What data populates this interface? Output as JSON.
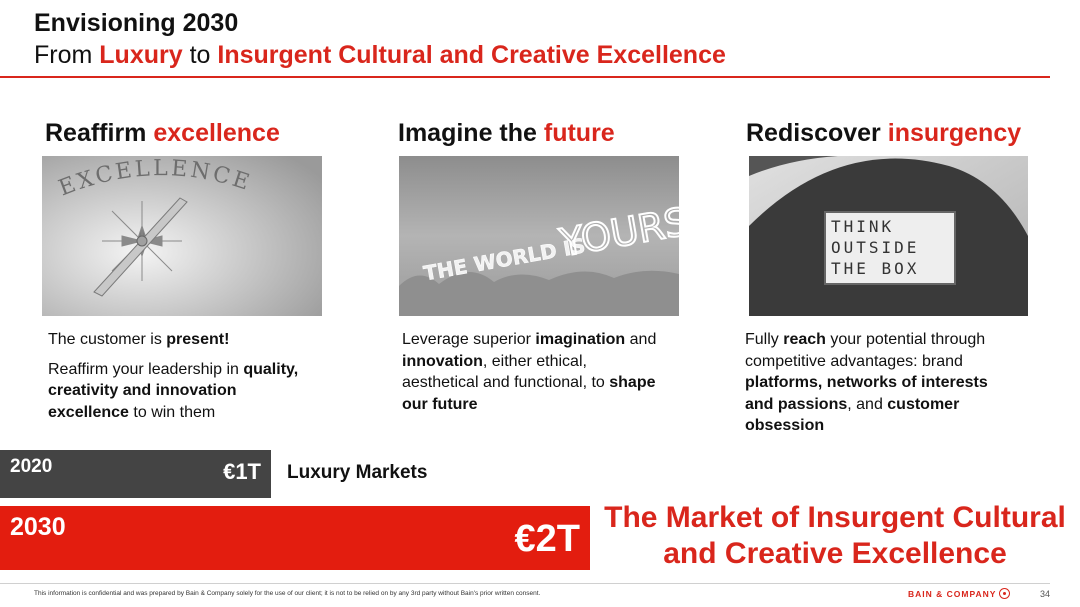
{
  "header": {
    "title": "Envisioning 2030",
    "subtitle_from": "From ",
    "subtitle_luxury": "Luxury",
    "subtitle_to": " to ",
    "subtitle_target": "Insurgent Cultural and Creative Excellence"
  },
  "columns": [
    {
      "heading_plain": "Reaffirm ",
      "heading_accent": "excellence",
      "image_text": "EXCELLENCE",
      "p1_a": "The customer is ",
      "p1_b": "present!",
      "p2_a": "Reaffirm your leadership in ",
      "p2_b": "quality, creativity and innovation excellence",
      "p2_c": " to win them"
    },
    {
      "heading_plain": "Imagine the ",
      "heading_accent": "future",
      "image_text_a": "THE WORLD IS ",
      "image_text_b": "YOURS",
      "t_a": "Leverage superior ",
      "t_b": "imagination",
      "t_c": " and ",
      "t_d": "innovation",
      "t_e": ", either ethical, aesthetical and functional, to ",
      "t_f": "shape our future"
    },
    {
      "heading_plain": "Rediscover ",
      "heading_accent": "insurgency",
      "image_line1": "THINK",
      "image_line2": "OUTSIDE",
      "image_line3": "THE BOX",
      "t_a": "Fully ",
      "t_b": "reach",
      "t_c": " your potential through competitive advantages: brand ",
      "t_d": "platforms, networks of interests and passions",
      "t_e": ", and ",
      "t_f": "customer obsession"
    }
  ],
  "bars": {
    "year_2020": "2020",
    "value_2020": "€1T",
    "label_2020": "Luxury Markets",
    "year_2030": "2030",
    "value_2030": "€2T",
    "label_2030_line1": "The Market of Insurgent Cultural",
    "label_2030_line2": "and Creative Excellence"
  },
  "footer": {
    "disclaimer": "This information is confidential and was prepared by Bain & Company solely for the use of our client; it is not to be relied on by any 3rd party without Bain's prior written consent.",
    "brand": "BAIN & COMPANY",
    "page_number": "34"
  },
  "colors": {
    "accent_red": "#d9261c",
    "bar_2020": "#444444",
    "bar_2030": "#e31d0f"
  }
}
